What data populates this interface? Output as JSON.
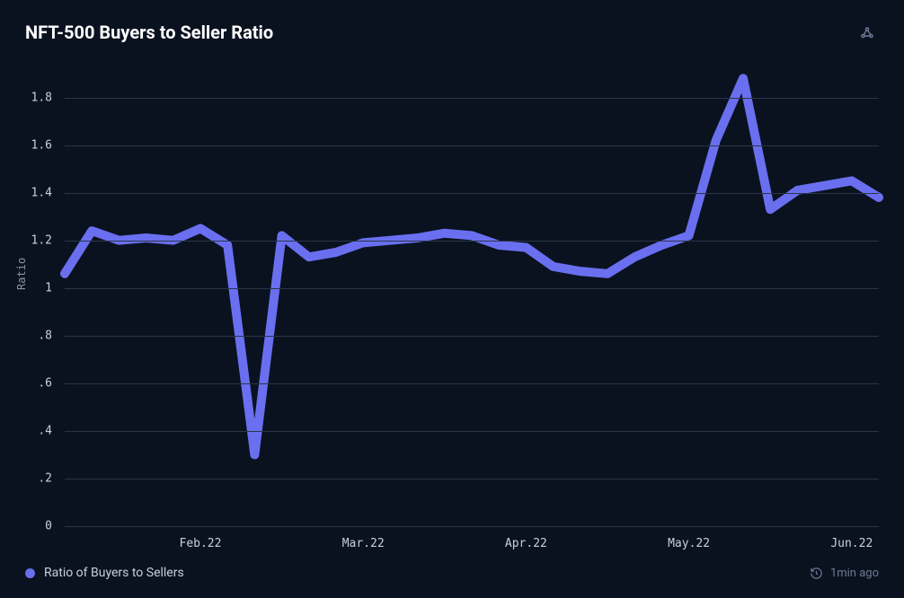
{
  "title": "NFT-500 Buyers to Seller Ratio",
  "chart": {
    "type": "line",
    "background_color": "#0a1220",
    "grid_color": "#2a3548",
    "text_color": "#c8d0dc",
    "axis_label_color": "#8a94a6",
    "line_color": "#6a6ff0",
    "line_width": 2.5,
    "y_axis": {
      "label": "Ratio",
      "min": 0,
      "max": 1.9,
      "ticks": [
        0,
        0.2,
        0.4,
        0.6,
        0.8,
        1.0,
        1.2,
        1.4,
        1.6,
        1.8
      ],
      "tick_labels": [
        "0",
        ".2",
        ".4",
        ".6",
        ".8",
        "1",
        "1.2",
        "1.4",
        "1.6",
        "1.8"
      ]
    },
    "x_axis": {
      "min": 0,
      "max": 30,
      "ticks": [
        5,
        11,
        17,
        23,
        29
      ],
      "tick_labels": [
        "Feb.22",
        "Mar.22",
        "Apr.22",
        "May.22",
        "Jun.22"
      ]
    },
    "series": [
      {
        "name": "Ratio of Buyers to Sellers",
        "color": "#6a6ff0",
        "data": [
          {
            "x": 0,
            "y": 1.06
          },
          {
            "x": 1,
            "y": 1.24
          },
          {
            "x": 2,
            "y": 1.2
          },
          {
            "x": 3,
            "y": 1.21
          },
          {
            "x": 4,
            "y": 1.2
          },
          {
            "x": 5,
            "y": 1.25
          },
          {
            "x": 6,
            "y": 1.18
          },
          {
            "x": 7,
            "y": 0.3
          },
          {
            "x": 8,
            "y": 1.22
          },
          {
            "x": 9,
            "y": 1.13
          },
          {
            "x": 10,
            "y": 1.15
          },
          {
            "x": 11,
            "y": 1.19
          },
          {
            "x": 12,
            "y": 1.2
          },
          {
            "x": 13,
            "y": 1.21
          },
          {
            "x": 14,
            "y": 1.23
          },
          {
            "x": 15,
            "y": 1.22
          },
          {
            "x": 16,
            "y": 1.18
          },
          {
            "x": 17,
            "y": 1.17
          },
          {
            "x": 18,
            "y": 1.09
          },
          {
            "x": 19,
            "y": 1.07
          },
          {
            "x": 20,
            "y": 1.06
          },
          {
            "x": 21,
            "y": 1.13
          },
          {
            "x": 22,
            "y": 1.18
          },
          {
            "x": 23,
            "y": 1.22
          },
          {
            "x": 24,
            "y": 1.62
          },
          {
            "x": 25,
            "y": 1.88
          },
          {
            "x": 26,
            "y": 1.33
          },
          {
            "x": 27,
            "y": 1.41
          },
          {
            "x": 28,
            "y": 1.43
          },
          {
            "x": 29,
            "y": 1.45
          },
          {
            "x": 30,
            "y": 1.38
          }
        ]
      }
    ]
  },
  "legend": {
    "label": "Ratio of Buyers to Sellers",
    "dot_color": "#6a6ff0"
  },
  "timestamp": {
    "text": "1min ago"
  }
}
